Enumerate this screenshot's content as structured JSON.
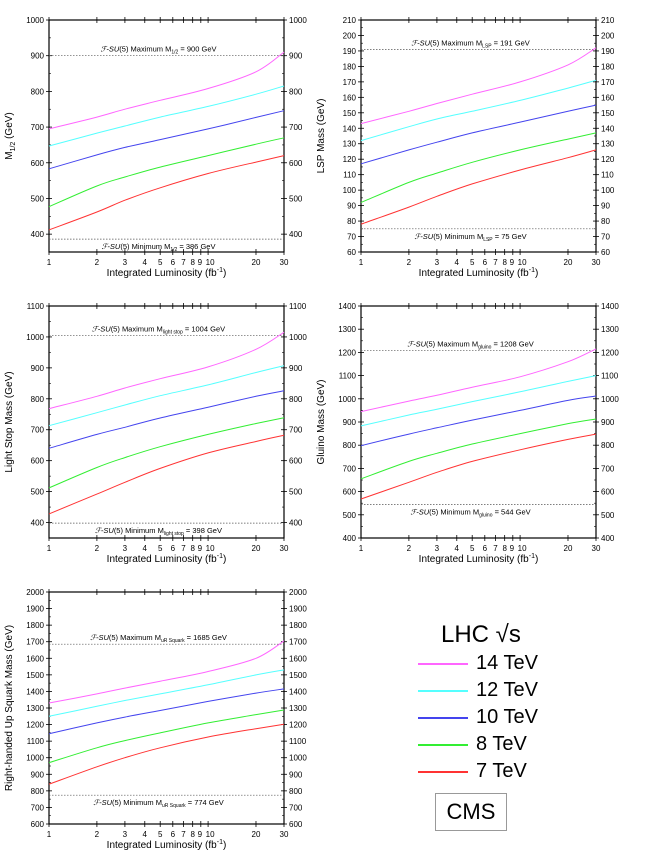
{
  "chart_data": [
    {
      "type": "line",
      "title": "",
      "xlabel": "Integrated Luminosity (fb^-1)",
      "ylabel": "M_1/2 (GeV)",
      "xscale": "log",
      "xlim": [
        1,
        30
      ],
      "ylim": [
        350,
        1000
      ],
      "yticks": [
        400,
        500,
        600,
        700,
        800,
        900,
        1000
      ],
      "xticks": [
        1,
        2,
        3,
        4,
        5,
        6,
        7,
        8,
        9,
        10,
        20,
        30
      ],
      "x": [
        1,
        2,
        3,
        5,
        10,
        20,
        30
      ],
      "series": [
        {
          "name": "14 TeV",
          "values": [
            695,
            728,
            750,
            775,
            808,
            855,
            910
          ]
        },
        {
          "name": "12 TeV",
          "values": [
            647,
            683,
            703,
            728,
            758,
            792,
            815
          ]
        },
        {
          "name": "10 TeV",
          "values": [
            583,
            622,
            643,
            665,
            695,
            727,
            746
          ]
        },
        {
          "name": "8 TeV",
          "values": [
            477,
            535,
            560,
            588,
            620,
            652,
            670
          ]
        },
        {
          "name": "7 TeV",
          "values": [
            412,
            462,
            495,
            530,
            570,
            602,
            620
          ]
        }
      ],
      "hlines": [
        {
          "value": 900,
          "label_pre": "Maximum M",
          "sub": "1/2",
          "label_post": " = 900 GeV"
        },
        {
          "value": 386,
          "label_pre": "Minimum M",
          "sub": "1/2",
          "label_post": " = 386 GeV"
        }
      ]
    },
    {
      "type": "line",
      "title": "",
      "xlabel": "Integrated Luminosity (fb^-1)",
      "ylabel": "LSP Mass (GeV)",
      "xscale": "log",
      "xlim": [
        1,
        30
      ],
      "ylim": [
        60,
        210
      ],
      "yticks": [
        60,
        70,
        80,
        90,
        100,
        110,
        120,
        130,
        140,
        150,
        160,
        170,
        180,
        190,
        200,
        210
      ],
      "xticks": [
        1,
        2,
        3,
        4,
        5,
        6,
        7,
        8,
        9,
        10,
        20,
        30
      ],
      "x": [
        1,
        2,
        3,
        5,
        10,
        20,
        30
      ],
      "series": [
        {
          "name": "14 TeV",
          "values": [
            143,
            151,
            156,
            162,
            170,
            181,
            192
          ]
        },
        {
          "name": "12 TeV",
          "values": [
            132,
            141,
            146,
            151,
            158,
            166,
            171
          ]
        },
        {
          "name": "10 TeV",
          "values": [
            117,
            126,
            131,
            137,
            144,
            151,
            155
          ]
        },
        {
          "name": "8 TeV",
          "values": [
            92,
            105,
            111,
            118,
            126,
            133,
            137
          ]
        },
        {
          "name": "7 TeV",
          "values": [
            78,
            89,
            96,
            104,
            113,
            121,
            126
          ]
        }
      ],
      "hlines": [
        {
          "value": 191,
          "label_pre": "Maximum M",
          "sub": "LSP",
          "label_post": " = 191 GeV"
        },
        {
          "value": 75,
          "label_pre": "Minimum M",
          "sub": "LSP",
          "label_post": " = 75 GeV"
        }
      ]
    },
    {
      "type": "line",
      "title": "",
      "xlabel": "Integrated Luminosity (fb^-1)",
      "ylabel": "Light Stop Mass (GeV)",
      "xscale": "log",
      "xlim": [
        1,
        30
      ],
      "ylim": [
        350,
        1100
      ],
      "yticks": [
        400,
        500,
        600,
        700,
        800,
        900,
        1000,
        1100
      ],
      "xticks": [
        1,
        2,
        3,
        4,
        5,
        6,
        7,
        8,
        9,
        10,
        20,
        30
      ],
      "x": [
        1,
        2,
        3,
        5,
        10,
        20,
        30
      ],
      "series": [
        {
          "name": "14 TeV",
          "values": [
            768,
            808,
            835,
            865,
            903,
            960,
            1015
          ]
        },
        {
          "name": "12 TeV",
          "values": [
            713,
            755,
            780,
            810,
            845,
            885,
            907
          ]
        },
        {
          "name": "10 TeV",
          "values": [
            640,
            685,
            708,
            738,
            773,
            808,
            826
          ]
        },
        {
          "name": "8 TeV",
          "values": [
            512,
            578,
            610,
            645,
            685,
            720,
            739
          ]
        },
        {
          "name": "7 TeV",
          "values": [
            428,
            492,
            530,
            575,
            625,
            662,
            682
          ]
        }
      ],
      "hlines": [
        {
          "value": 1004,
          "label_pre": "Maximum M",
          "sub": "light stop",
          "label_post": " = 1004 GeV"
        },
        {
          "value": 398,
          "label_pre": "Minimum M",
          "sub": "light stop",
          "label_post": " = 398 GeV"
        }
      ]
    },
    {
      "type": "line",
      "title": "",
      "xlabel": "Integrated Luminosity (fb^-1)",
      "ylabel": "Gluino Mass (GeV)",
      "xscale": "log",
      "xlim": [
        1,
        30
      ],
      "ylim": [
        400,
        1400
      ],
      "yticks": [
        400,
        500,
        600,
        700,
        800,
        900,
        1000,
        1100,
        1200,
        1300,
        1400
      ],
      "xticks": [
        1,
        2,
        3,
        4,
        5,
        6,
        7,
        8,
        9,
        10,
        20,
        30
      ],
      "x": [
        1,
        2,
        3,
        5,
        10,
        20,
        30
      ],
      "series": [
        {
          "name": "14 TeV",
          "values": [
            945,
            990,
            1015,
            1050,
            1095,
            1160,
            1215
          ]
        },
        {
          "name": "12 TeV",
          "values": [
            883,
            930,
            955,
            988,
            1030,
            1075,
            1100
          ]
        },
        {
          "name": "10 TeV",
          "values": [
            798,
            848,
            875,
            908,
            950,
            993,
            1012
          ]
        },
        {
          "name": "8 TeV",
          "values": [
            655,
            730,
            765,
            805,
            850,
            893,
            913
          ]
        },
        {
          "name": "7 TeV",
          "values": [
            568,
            640,
            683,
            730,
            780,
            825,
            848
          ]
        }
      ],
      "hlines": [
        {
          "value": 1208,
          "label_pre": "Maximum M",
          "sub": "gluino",
          "label_post": " = 1208 GeV"
        },
        {
          "value": 544,
          "label_pre": "Minimum M",
          "sub": "gluino",
          "label_post": " = 544 GeV"
        }
      ]
    },
    {
      "type": "line",
      "title": "",
      "xlabel": "Integrated Luminosity (fb^-1)",
      "ylabel": "Right-handed Up Squark Mass (GeV)",
      "xscale": "log",
      "xlim": [
        1,
        30
      ],
      "ylim": [
        600,
        2000
      ],
      "yticks": [
        600,
        700,
        800,
        900,
        1000,
        1100,
        1200,
        1300,
        1400,
        1500,
        1600,
        1700,
        1800,
        1900,
        2000
      ],
      "xticks": [
        1,
        2,
        3,
        4,
        5,
        6,
        7,
        8,
        9,
        10,
        20,
        30
      ],
      "x": [
        1,
        2,
        3,
        5,
        10,
        20,
        30
      ],
      "series": [
        {
          "name": "14 TeV",
          "values": [
            1330,
            1385,
            1420,
            1462,
            1520,
            1600,
            1705
          ]
        },
        {
          "name": "12 TeV",
          "values": [
            1250,
            1310,
            1345,
            1385,
            1440,
            1500,
            1530
          ]
        },
        {
          "name": "10 TeV",
          "values": [
            1145,
            1210,
            1245,
            1285,
            1340,
            1390,
            1415
          ]
        },
        {
          "name": "8 TeV",
          "values": [
            970,
            1060,
            1103,
            1150,
            1210,
            1260,
            1288
          ]
        },
        {
          "name": "7 TeV",
          "values": [
            840,
            945,
            1000,
            1060,
            1125,
            1175,
            1202
          ]
        }
      ],
      "hlines": [
        {
          "value": 1685,
          "label_pre": "Maximum M",
          "sub": "uR Squark",
          "label_post": " = 1685 GeV"
        },
        {
          "value": 774,
          "label_pre": "Minimum M",
          "sub": "uR Squark",
          "label_post": " = 774 GeV"
        }
      ]
    }
  ],
  "model_prefix": "ℱ-SU(5)",
  "colors": {
    "14 TeV": "#ff66ff",
    "12 TeV": "#55ffff",
    "10 TeV": "#4444ee",
    "8 TeV": "#33ee33",
    "7 TeV": "#ff3333"
  },
  "legend": {
    "title": "LHC √s",
    "items": [
      {
        "label": "14 TeV",
        "color": "#ff66ff"
      },
      {
        "label": "12 TeV",
        "color": "#55ffff"
      },
      {
        "label": "10 TeV",
        "color": "#4444ee"
      },
      {
        "label": "8 TeV",
        "color": "#33ee33"
      },
      {
        "label": "7 TeV",
        "color": "#ff3333"
      }
    ]
  },
  "badge": "CMS"
}
